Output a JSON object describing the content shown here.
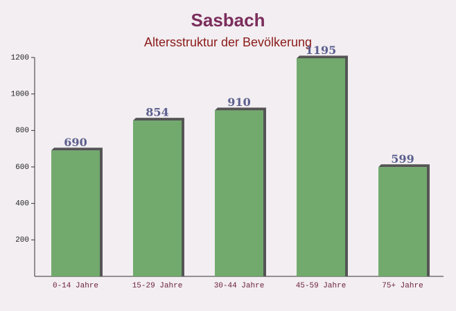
{
  "chart_data": {
    "type": "bar",
    "title": "Sasbach",
    "subtitle": "Altersstruktur der Bevölkerung",
    "categories": [
      "0-14 Jahre",
      "15-29 Jahre",
      "30-44 Jahre",
      "45-59 Jahre",
      "75+ Jahre"
    ],
    "values": [
      690,
      854,
      910,
      1195,
      599
    ],
    "color": "#6aa566",
    "ylim": [
      0,
      1200
    ],
    "yticks": [
      200,
      400,
      600,
      800,
      1000,
      1200
    ],
    "grid": false
  }
}
